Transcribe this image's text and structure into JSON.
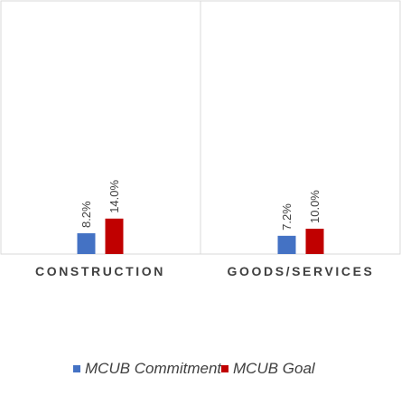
{
  "chart_data": {
    "type": "bar",
    "categories": [
      "CONSTRUCTION",
      "GOODS/SERVICES"
    ],
    "series": [
      {
        "name": "MCUB Commitment",
        "values": [
          8.2,
          7.2
        ],
        "labels": [
          "8.2%",
          "7.2%"
        ]
      },
      {
        "name": "MCUB Goal",
        "values": [
          14.0,
          10.0
        ],
        "labels": [
          "14.0%",
          "10.0%"
        ]
      }
    ],
    "ylim": [
      0,
      100
    ],
    "grid": false,
    "legend_position": "bottom",
    "colors": [
      "#4472C4",
      "#C00000"
    ]
  }
}
